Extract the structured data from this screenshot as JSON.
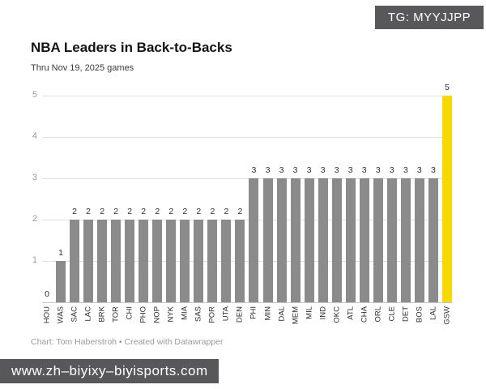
{
  "badge": {
    "label": "TG: MYYJJPP"
  },
  "header": {
    "title": "NBA Leaders in Back-to-Backs",
    "subtitle": "Thru Nov 19, 2025 games"
  },
  "chart_data": {
    "type": "bar",
    "title": "NBA Leaders in Back-to-Backs",
    "subtitle": "Thru Nov 19, 2025 games",
    "categories": [
      "HOU",
      "WAS",
      "SAC",
      "LAC",
      "BRK",
      "TOR",
      "CHI",
      "PHO",
      "NOP",
      "NYK",
      "MIA",
      "SAS",
      "POR",
      "UTA",
      "DEN",
      "PHI",
      "MIN",
      "DAL",
      "MEM",
      "MIL",
      "IND",
      "OKC",
      "ATL",
      "CHA",
      "ORL",
      "CLE",
      "DET",
      "BOS",
      "LAL",
      "GSW"
    ],
    "values": [
      0,
      1,
      2,
      2,
      2,
      2,
      2,
      2,
      2,
      2,
      2,
      2,
      2,
      2,
      2,
      3,
      3,
      3,
      3,
      3,
      3,
      3,
      3,
      3,
      3,
      3,
      3,
      3,
      3,
      5
    ],
    "ylim": [
      0,
      5
    ],
    "yticks": [
      1,
      2,
      3,
      4,
      5
    ],
    "grid": true,
    "legend": "none",
    "value_labels": true,
    "bar_color": "#8b8b8b",
    "highlight_category": "GSW",
    "highlight_color": "#f8d800",
    "xlabel": "",
    "ylabel": ""
  },
  "footer": {
    "credit": "Chart: Tom Haberstroh • Created with Datawrapper"
  },
  "watermark": {
    "label": "www.zh–biyixy–biyisports.com"
  }
}
